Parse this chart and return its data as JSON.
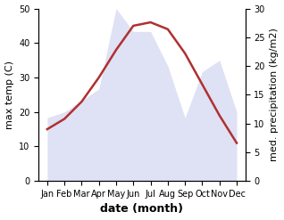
{
  "months": [
    "Jan",
    "Feb",
    "Mar",
    "Apr",
    "May",
    "Jun",
    "Jul",
    "Aug",
    "Sep",
    "Oct",
    "Nov",
    "Dec"
  ],
  "month_positions": [
    0,
    1,
    2,
    3,
    4,
    5,
    6,
    7,
    8,
    9,
    10,
    11
  ],
  "temperature": [
    15,
    18,
    23,
    30,
    38,
    45,
    46,
    44,
    37,
    28,
    19,
    11
  ],
  "precipitation": [
    11,
    12,
    14,
    16,
    30,
    26,
    26,
    20,
    11,
    19,
    21,
    12
  ],
  "temp_color": "#b03030",
  "precip_fill_color": "#c5caee",
  "bg_color": "#ffffff",
  "xlabel": "date (month)",
  "ylabel_left": "max temp (C)",
  "ylabel_right": "med. precipitation (kg/m2)",
  "ylim_left": [
    0,
    50
  ],
  "ylim_right": [
    0,
    30
  ],
  "yticks_left": [
    0,
    10,
    20,
    30,
    40,
    50
  ],
  "yticks_right": [
    0,
    5,
    10,
    15,
    20,
    25,
    30
  ],
  "xlabel_fontsize": 9,
  "ylabel_fontsize": 8,
  "tick_fontsize": 7,
  "linewidth": 1.8
}
